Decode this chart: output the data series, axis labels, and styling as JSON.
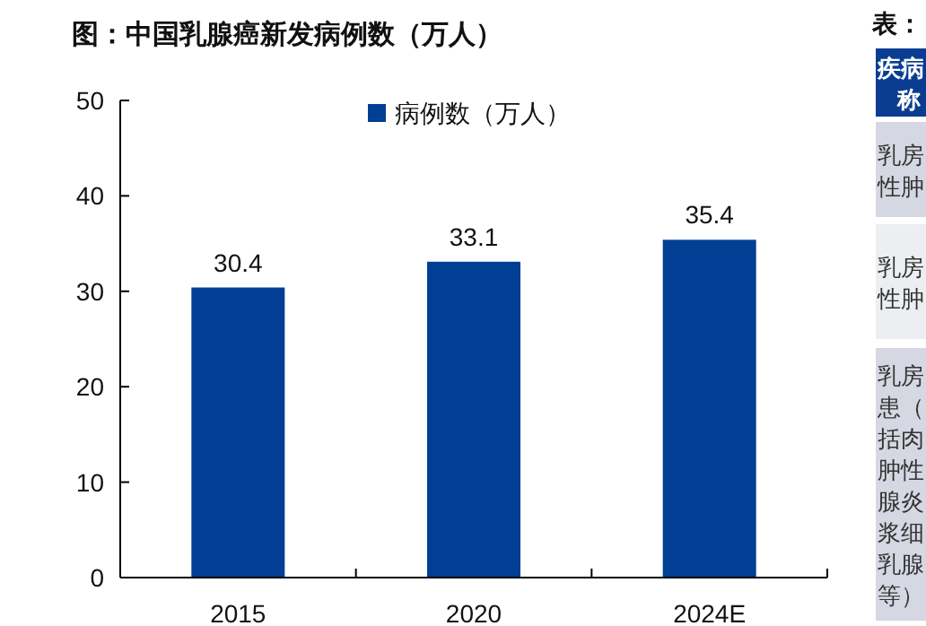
{
  "chart_data": [
    {
      "type": "bar",
      "title": "图：中国乳腺癌新发病例数（万人）",
      "categories": [
        "2015",
        "2020",
        "2024E"
      ],
      "series": [
        {
          "name": "病例数（万人）",
          "color": "#003f94",
          "values": [
            30.4,
            33.1,
            35.4
          ]
        }
      ],
      "ylim": [
        0,
        50
      ],
      "yticks": [
        0,
        10,
        20,
        30,
        40,
        50
      ],
      "data_labels": true,
      "legend": "top right",
      "grid": false
    },
    {
      "type": "other",
      "title": "表：",
      "annotations": [
        "疾病称",
        "乳房性肿",
        "乳房性肿",
        "乳房患（括肉肿性腺炎浆细乳腺等）"
      ]
    }
  ]
}
